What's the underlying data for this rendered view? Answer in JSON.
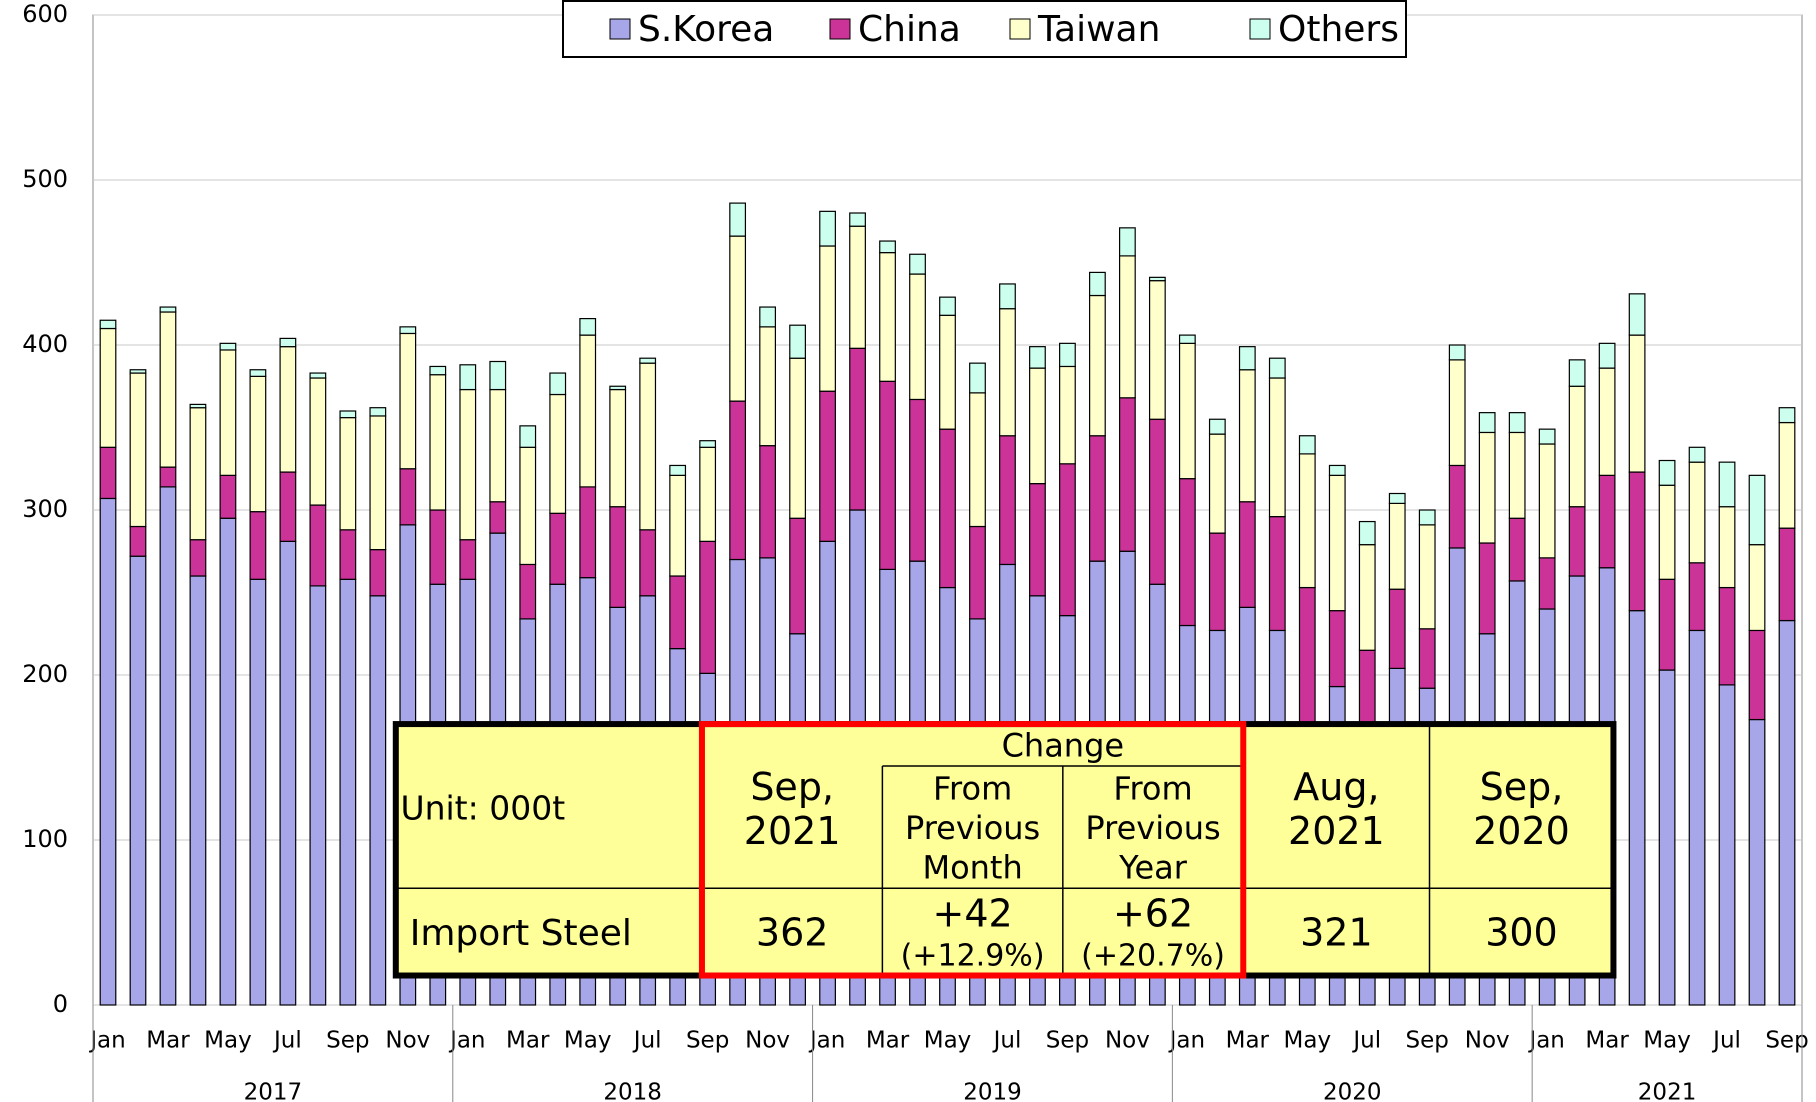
{
  "chart_data": {
    "type": "stacked_bar",
    "categories": [
      "Jan",
      null,
      "Mar",
      null,
      "May",
      null,
      "Jul",
      null,
      "Sep",
      null,
      "Nov",
      null,
      "Jan",
      null,
      "Mar",
      null,
      "May",
      null,
      "Jul",
      null,
      "Sep",
      null,
      "Nov",
      null,
      "Jan",
      null,
      "Mar",
      null,
      "May",
      null,
      "Jul",
      null,
      "Sep",
      null,
      "Nov",
      null,
      "Jan",
      null,
      "Mar",
      null,
      "May",
      null,
      "Jul",
      null,
      "Sep",
      null,
      "Nov",
      null,
      "Jan",
      null,
      "Mar",
      null,
      "May",
      null,
      "Jul",
      null,
      "Sep"
    ],
    "years": [
      "2017",
      "2018",
      "2019",
      "2020",
      "2021"
    ],
    "series": [
      {
        "name": "S.Korea",
        "color": "#a6a6e8",
        "values": [
          307,
          272,
          314,
          260,
          295,
          258,
          281,
          254,
          258,
          248,
          291,
          255,
          258,
          286,
          234,
          255,
          259,
          241,
          248,
          216,
          201,
          270,
          271,
          225,
          281,
          300,
          264,
          269,
          253,
          234,
          267,
          248,
          236,
          269,
          275,
          255,
          230,
          227,
          241,
          227,
          165,
          193,
          160,
          204,
          192,
          277,
          225,
          257,
          240,
          260,
          265,
          239,
          203,
          227,
          194,
          173,
          233
        ]
      },
      {
        "name": "China",
        "color": "#cc3399",
        "values": [
          31,
          18,
          12,
          22,
          26,
          41,
          42,
          49,
          30,
          28,
          34,
          45,
          24,
          19,
          33,
          43,
          55,
          61,
          40,
          44,
          80,
          96,
          68,
          70,
          91,
          98,
          114,
          98,
          96,
          56,
          78,
          68,
          92,
          76,
          93,
          100,
          89,
          59,
          64,
          69,
          88,
          46,
          55,
          48,
          36,
          50,
          55,
          38,
          31,
          42,
          56,
          84,
          55,
          41,
          59,
          54,
          56
        ]
      },
      {
        "name": "Taiwan",
        "color": "#ffffcc",
        "values": [
          72,
          93,
          94,
          80,
          76,
          82,
          76,
          77,
          68,
          81,
          82,
          82,
          91,
          68,
          71,
          72,
          92,
          71,
          101,
          61,
          57,
          100,
          72,
          97,
          88,
          74,
          78,
          76,
          69,
          81,
          77,
          70,
          59,
          85,
          86,
          84,
          82,
          60,
          80,
          84,
          81,
          82,
          64,
          52,
          63,
          64,
          67,
          52,
          69,
          73,
          65,
          83,
          57,
          61,
          49,
          52,
          64
        ]
      },
      {
        "name": "Others",
        "color": "#ccffee",
        "values": [
          5,
          2,
          3,
          2,
          4,
          4,
          5,
          3,
          4,
          5,
          4,
          5,
          15,
          17,
          13,
          13,
          10,
          2,
          3,
          6,
          4,
          20,
          12,
          20,
          21,
          8,
          7,
          12,
          11,
          18,
          15,
          13,
          14,
          14,
          17,
          2,
          5,
          9,
          14,
          12,
          11,
          6,
          14,
          6,
          9,
          9,
          12,
          12,
          9,
          16,
          15,
          25,
          15,
          9,
          27,
          42,
          9
        ]
      }
    ],
    "ylim": [
      0,
      600
    ],
    "yticks": [
      0,
      100,
      200,
      300,
      400,
      500,
      600
    ],
    "grid": true,
    "legend": "top"
  },
  "table": {
    "unit": "Unit: 000t",
    "change": "Change",
    "columns": [
      [
        "Sep,",
        "2021"
      ],
      [
        "From",
        "Previous",
        "Month"
      ],
      [
        "From",
        "Previous",
        "Year"
      ],
      [
        "Aug,",
        "2021"
      ],
      [
        "Sep,",
        "2020"
      ]
    ],
    "row_label": "Import Steel",
    "cells": [
      [
        "362"
      ],
      [
        "+42",
        "(+12.9%)"
      ],
      [
        "+62",
        "(+20.7%)"
      ],
      [
        "321"
      ],
      [
        "300"
      ]
    ]
  }
}
